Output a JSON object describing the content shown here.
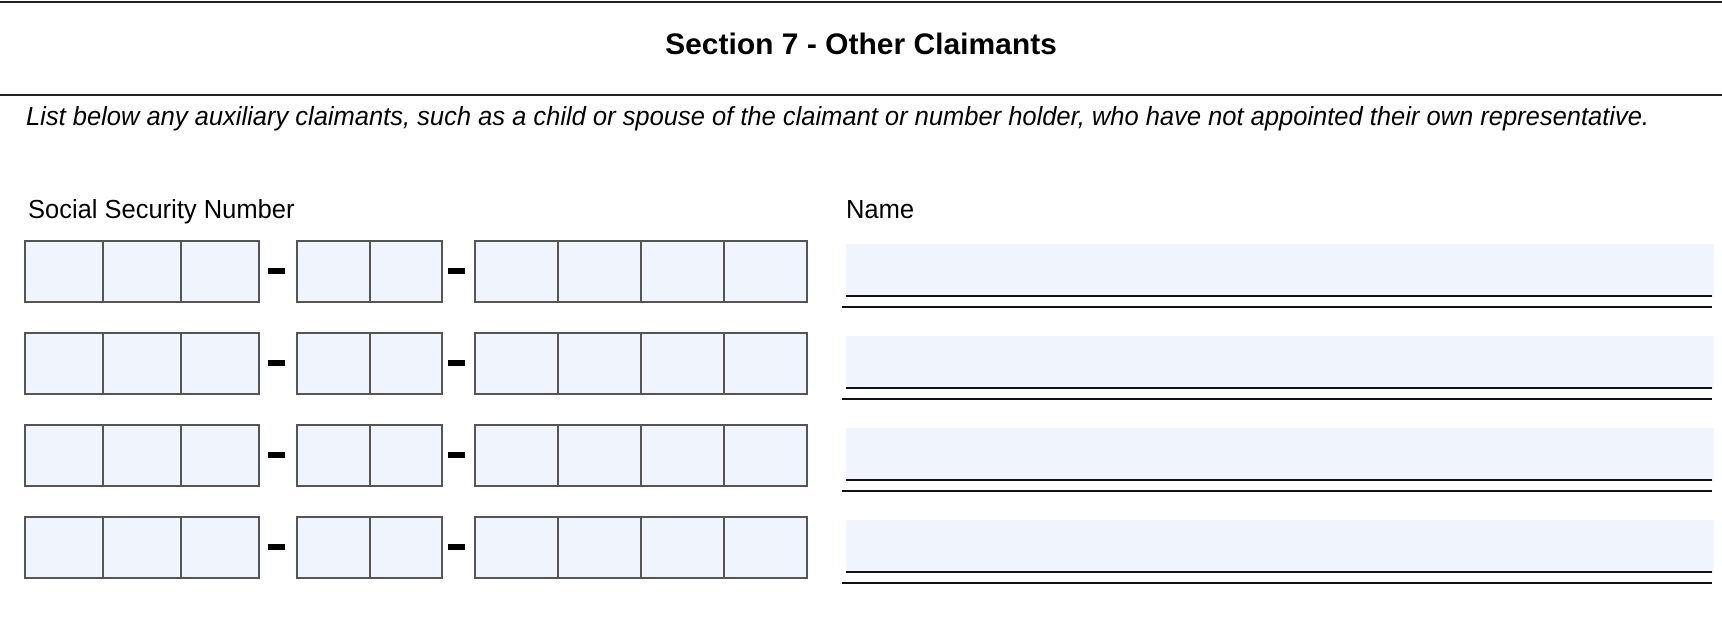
{
  "section": {
    "title": "Section 7 - Other Claimants",
    "instructions": "List below any auxiliary claimants, such as a child or spouse of the claimant or number holder, who have not appointed their own representative."
  },
  "labels": {
    "ssn": "Social Security Number",
    "name": "Name"
  },
  "colors": {
    "field_fill": "#f0f4fc",
    "box_border": "#555555"
  },
  "rows": [
    {
      "ssn": [
        "",
        "",
        ""
      ],
      "name": ""
    },
    {
      "ssn": [
        "",
        "",
        ""
      ],
      "name": ""
    },
    {
      "ssn": [
        "",
        "",
        ""
      ],
      "name": ""
    },
    {
      "ssn": [
        "",
        "",
        ""
      ],
      "name": ""
    }
  ]
}
